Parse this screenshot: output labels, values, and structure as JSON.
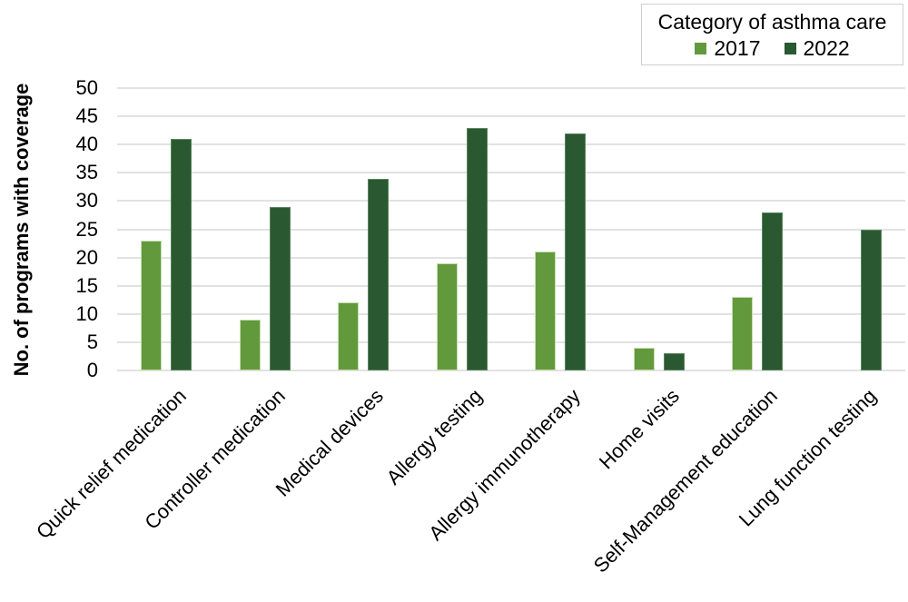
{
  "chart": {
    "y_axis_title": "No. of programs with coverage",
    "legend_title": "Category of asthma care"
  },
  "chart_data": {
    "type": "bar",
    "title": "",
    "xlabel": "",
    "ylabel": "No. of programs with coverage",
    "legend_title": "Category of asthma care",
    "legend_position": "top-right",
    "grid": true,
    "ylim": [
      0,
      50
    ],
    "ytick_step": 5,
    "categories": [
      "Quick relief medication",
      "Controller medication",
      "Medical devices",
      "Allergy testing",
      "Allergy immunotherapy",
      "Home visits",
      "Self-Management education",
      "Lung function testing"
    ],
    "series": [
      {
        "name": "2017",
        "color": "#63993d",
        "edge_color": "#c7dcae",
        "values": [
          23,
          9,
          12,
          19,
          21,
          4,
          13,
          0
        ]
      },
      {
        "name": "2022",
        "color": "#295831",
        "edge_color": "#5b855e",
        "values": [
          41,
          29,
          34,
          43,
          42,
          3,
          28,
          25
        ]
      }
    ],
    "colors": {
      "gridline": "#e2e2e2",
      "text": "#000000",
      "legend_border": "#d0d0d0"
    }
  }
}
